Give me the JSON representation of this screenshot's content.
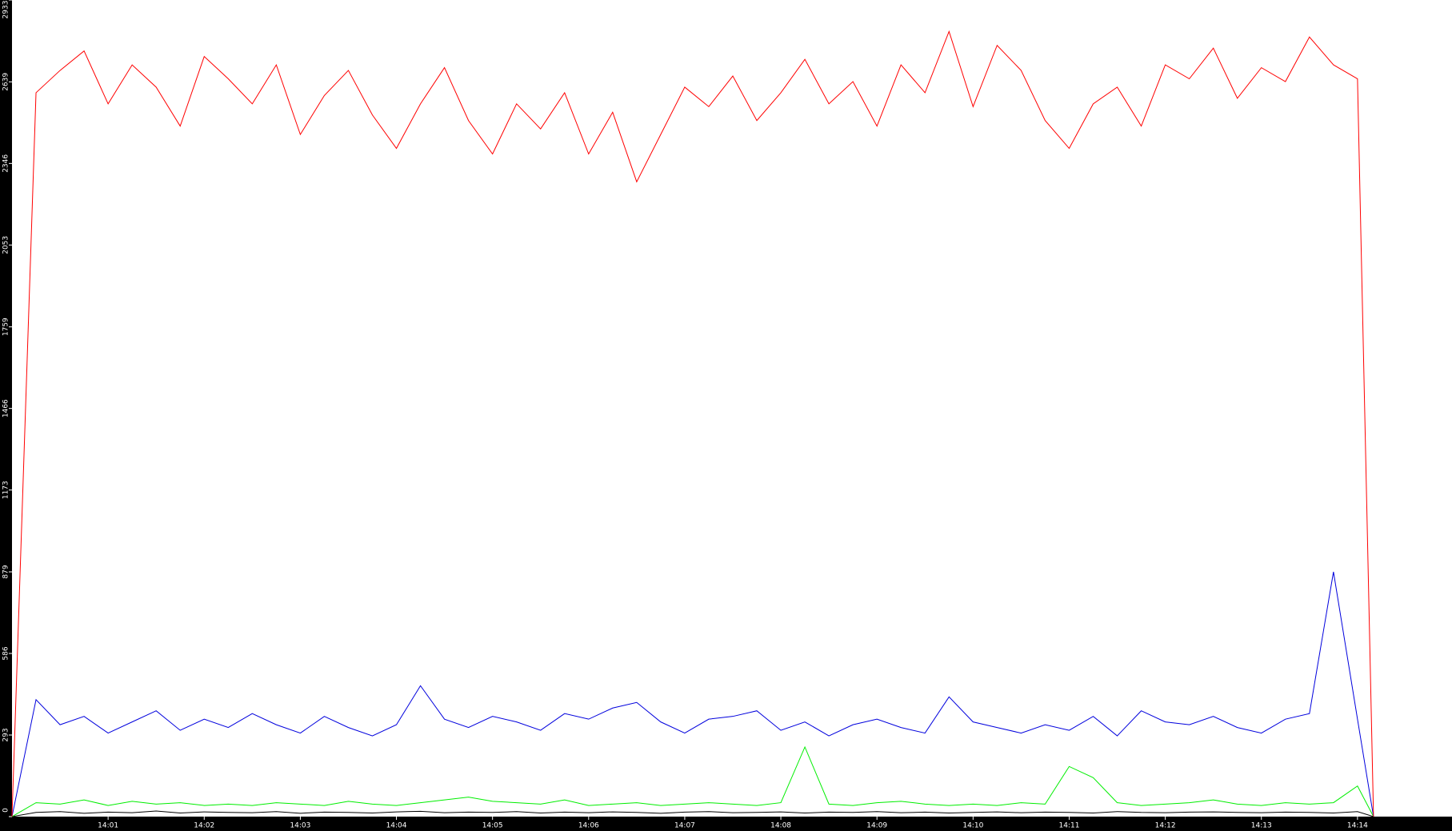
{
  "chart_data": {
    "type": "line",
    "x": [
      50400,
      50415,
      50430,
      50445,
      50460,
      50475,
      50490,
      50505,
      50520,
      50535,
      50550,
      50565,
      50580,
      50595,
      50610,
      50625,
      50640,
      50655,
      50670,
      50685,
      50700,
      50715,
      50730,
      50745,
      50760,
      50775,
      50790,
      50805,
      50820,
      50835,
      50850,
      50865,
      50880,
      50895,
      50910,
      50925,
      50940,
      50955,
      50970,
      50985,
      51000,
      51015,
      51030,
      51045,
      51060,
      51075,
      51090,
      51105,
      51120,
      51135,
      51150,
      51165,
      51180,
      51195,
      51210,
      51225,
      51240,
      51250
    ],
    "series": [
      {
        "color": "#ff0000",
        "values": [
          0,
          2600,
          2680,
          2750,
          2560,
          2700,
          2620,
          2480,
          2730,
          2650,
          2560,
          2700,
          2450,
          2590,
          2680,
          2520,
          2400,
          2560,
          2690,
          2500,
          2380,
          2560,
          2470,
          2600,
          2380,
          2530,
          2280,
          2450,
          2620,
          2550,
          2660,
          2500,
          2600,
          2720,
          2560,
          2640,
          2480,
          2700,
          2600,
          2820,
          2550,
          2770,
          2680,
          2500,
          2400,
          2560,
          2620,
          2480,
          2700,
          2650,
          2760,
          2580,
          2690,
          2640,
          2800,
          2700,
          2650,
          0
        ]
      },
      {
        "color": "#0000dd",
        "values": [
          0,
          420,
          330,
          360,
          300,
          340,
          380,
          310,
          350,
          320,
          370,
          330,
          300,
          360,
          320,
          290,
          330,
          470,
          350,
          320,
          360,
          340,
          310,
          370,
          350,
          390,
          410,
          340,
          300,
          350,
          360,
          380,
          310,
          340,
          290,
          330,
          350,
          320,
          300,
          430,
          340,
          320,
          300,
          330,
          310,
          360,
          290,
          380,
          340,
          330,
          360,
          320,
          300,
          350,
          370,
          879,
          350,
          0
        ]
      },
      {
        "color": "#00ee00",
        "values": [
          0,
          50,
          45,
          60,
          40,
          55,
          45,
          50,
          40,
          45,
          40,
          50,
          45,
          40,
          55,
          45,
          40,
          50,
          60,
          70,
          55,
          50,
          45,
          60,
          40,
          45,
          50,
          40,
          45,
          50,
          45,
          40,
          50,
          250,
          45,
          40,
          50,
          55,
          45,
          40,
          45,
          40,
          50,
          45,
          180,
          140,
          50,
          40,
          45,
          50,
          60,
          45,
          40,
          50,
          45,
          50,
          110,
          0
        ]
      },
      {
        "color": "#000000",
        "values": [
          0,
          15,
          18,
          12,
          16,
          14,
          20,
          13,
          17,
          15,
          14,
          18,
          12,
          16,
          15,
          13,
          17,
          19,
          14,
          16,
          15,
          18,
          13,
          16,
          14,
          17,
          15,
          12,
          16,
          18,
          14,
          15,
          17,
          13,
          16,
          15,
          18,
          14,
          16,
          13,
          15,
          17,
          14,
          16,
          15,
          13,
          18,
          15,
          14,
          16,
          17,
          15,
          14,
          16,
          15,
          13,
          18,
          0
        ]
      }
    ],
    "xlim": [
      50400,
      51299
    ],
    "xticks": [
      {
        "value": 50460,
        "label": "14:01"
      },
      {
        "value": 50520,
        "label": "14:02"
      },
      {
        "value": 50580,
        "label": "14:03"
      },
      {
        "value": 50640,
        "label": "14:04"
      },
      {
        "value": 50700,
        "label": "14:05"
      },
      {
        "value": 50760,
        "label": "14:06"
      },
      {
        "value": 50820,
        "label": "14:07"
      },
      {
        "value": 50880,
        "label": "14:08"
      },
      {
        "value": 50940,
        "label": "14:09"
      },
      {
        "value": 51000,
        "label": "14:10"
      },
      {
        "value": 51060,
        "label": "14:11"
      },
      {
        "value": 51120,
        "label": "14:12"
      },
      {
        "value": 51180,
        "label": "14:13"
      },
      {
        "value": 51240,
        "label": "14:14"
      }
    ],
    "ylim": [
      0,
      2933
    ],
    "yticks": [
      0,
      293,
      586,
      879,
      1173,
      1466,
      1759,
      2053,
      2346,
      2639,
      2933
    ]
  }
}
